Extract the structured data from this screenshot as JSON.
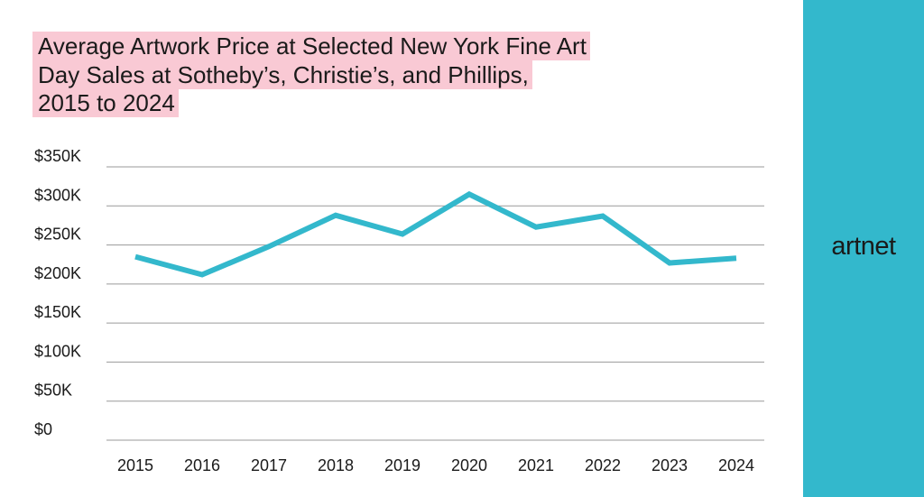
{
  "chart_data": {
    "type": "line",
    "title": "Average Artwork Price at Selected New York Fine Art Day Sales at Sotheby’s, Christie’s, and Phillips, 2015 to 2024",
    "title_lines": [
      "Average Artwork Price at Selected New York Fine Art",
      "Day Sales at Sotheby’s, Christie’s, and Phillips,",
      "2015 to 2024"
    ],
    "xlabel": "",
    "ylabel": "",
    "x": [
      "2015",
      "2016",
      "2017",
      "2018",
      "2019",
      "2020",
      "2021",
      "2022",
      "2023",
      "2024"
    ],
    "values": [
      235000,
      212000,
      248000,
      288000,
      264000,
      315000,
      273000,
      287000,
      227000,
      233000
    ],
    "ylim": [
      0,
      350000
    ],
    "y_ticks": [
      0,
      50000,
      100000,
      150000,
      200000,
      250000,
      300000,
      350000
    ],
    "y_tick_labels": [
      "$0",
      "$50K",
      "$100K",
      "$150K",
      "$200K",
      "$250K",
      "$300K",
      "$350K"
    ],
    "grid": true,
    "line_color": "#33b8cc"
  },
  "colors": {
    "title_highlight": "#f9c9d4",
    "sidebar": "#33b8cc",
    "gridline": "#9a9a9a",
    "text": "#1a1a1a"
  },
  "brand": {
    "logo_text": "artnet"
  }
}
